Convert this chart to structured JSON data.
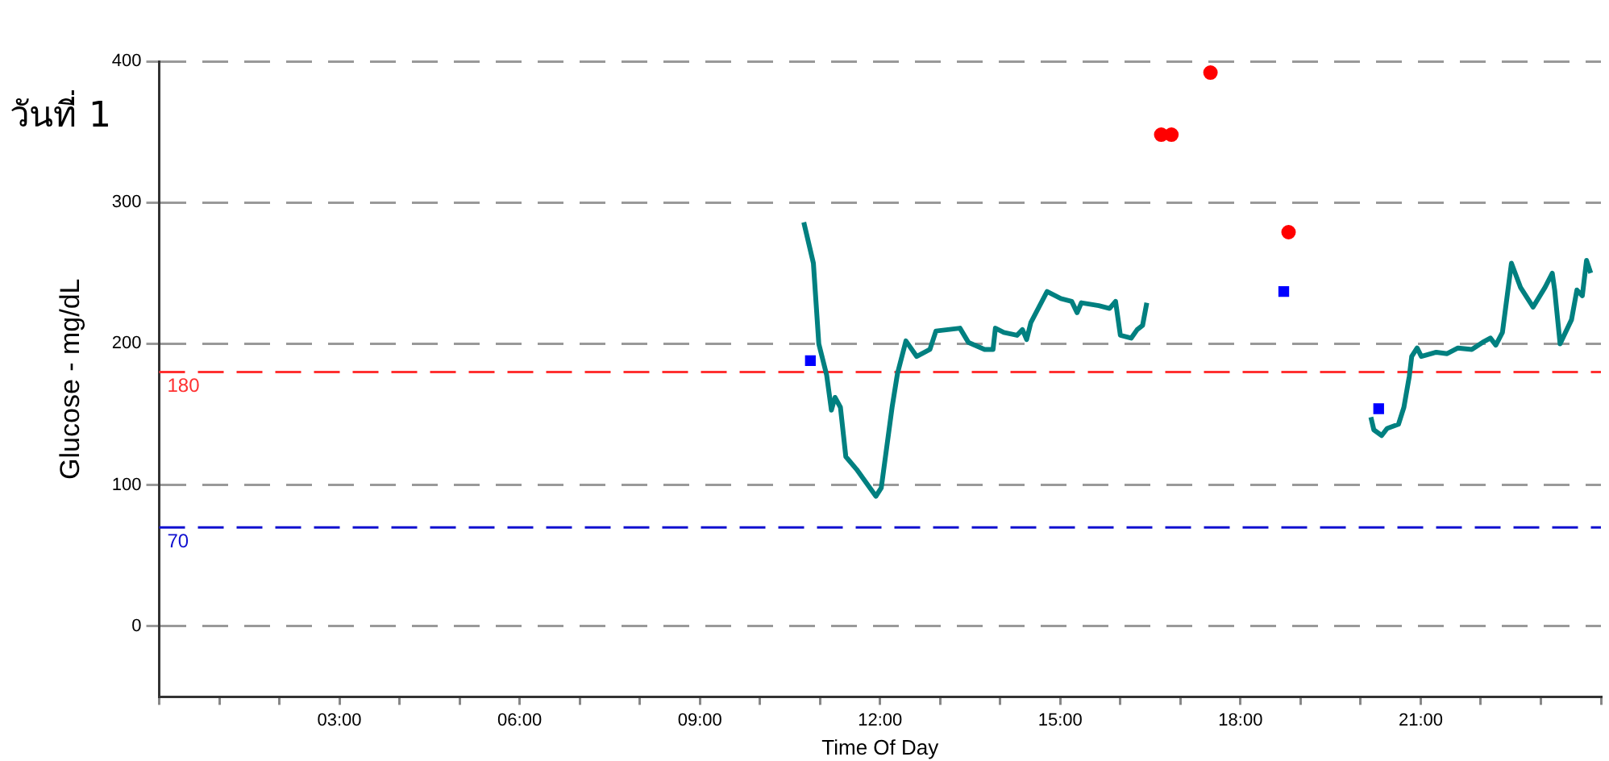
{
  "chart_data": {
    "type": "line",
    "xlabel": "Time Of Day",
    "ylabel": "Glucose - mg/dL",
    "annotations": [
      "วันที่ 1"
    ],
    "xlim": [
      0,
      24
    ],
    "ylim": [
      -50,
      400
    ],
    "yticks": [
      0,
      100,
      200,
      300,
      400
    ],
    "xticks": [
      {
        "value": 0,
        "label": null
      },
      {
        "value": 1,
        "label": null
      },
      {
        "value": 2,
        "label": null
      },
      {
        "value": 3,
        "label": "03:00"
      },
      {
        "value": 4,
        "label": null
      },
      {
        "value": 5,
        "label": null
      },
      {
        "value": 6,
        "label": "06:00"
      },
      {
        "value": 7,
        "label": null
      },
      {
        "value": 8,
        "label": null
      },
      {
        "value": 9,
        "label": "09:00"
      },
      {
        "value": 10,
        "label": null
      },
      {
        "value": 11,
        "label": null
      },
      {
        "value": 12,
        "label": "12:00"
      },
      {
        "value": 13,
        "label": null
      },
      {
        "value": 14,
        "label": null
      },
      {
        "value": 15,
        "label": "15:00"
      },
      {
        "value": 16,
        "label": null
      },
      {
        "value": 17,
        "label": null
      },
      {
        "value": 18,
        "label": "18:00"
      },
      {
        "value": 19,
        "label": null
      },
      {
        "value": 20,
        "label": null
      },
      {
        "value": 21,
        "label": "21:00"
      },
      {
        "value": 22,
        "label": null
      },
      {
        "value": 23,
        "label": null
      },
      {
        "value": 24,
        "label": null
      }
    ],
    "grid": "y",
    "legend": false,
    "ref_lines": [
      {
        "axis": "y",
        "value": 180,
        "label": "180",
        "color": "#ff3030",
        "line_style": "dashed"
      },
      {
        "axis": "y",
        "value": 70,
        "label": "70",
        "color": "#1010d0",
        "line_style": "dashed"
      }
    ],
    "series": [
      {
        "color": "#008080",
        "marker": "none",
        "x": [
          10.73,
          10.89,
          10.98,
          11.11,
          11.19,
          11.25,
          11.34,
          11.43,
          11.61,
          11.93,
          12.02,
          12.2,
          12.29,
          12.43,
          12.61,
          12.83,
          12.93,
          13.33,
          13.47,
          13.74,
          13.88,
          13.92,
          14.06,
          14.28,
          14.37,
          14.44,
          14.51,
          14.78,
          15.01,
          15.19,
          15.28,
          15.35,
          15.64,
          15.82,
          15.92,
          16.0,
          16.18,
          16.28,
          16.37,
          16.44,
          18.0,
          20.17,
          20.22,
          20.35,
          20.44,
          20.63,
          20.72,
          20.81,
          20.85,
          20.94,
          21.01,
          21.26,
          21.44,
          21.62,
          21.85,
          22.03,
          22.16,
          22.25,
          22.36,
          22.51,
          22.66,
          22.87,
          23.07,
          23.19,
          23.23,
          23.32,
          23.51,
          23.6,
          23.69,
          23.76,
          23.83
        ],
        "values": [
          286,
          257,
          200,
          178,
          153,
          162,
          155,
          120,
          111,
          92,
          98,
          155,
          179,
          202,
          191,
          196,
          209,
          211,
          201,
          196,
          196,
          211,
          208,
          206,
          210,
          203,
          215,
          237,
          232,
          230,
          222,
          229,
          227,
          225,
          230,
          206,
          204,
          210,
          213,
          229,
          null,
          148,
          139,
          135,
          140,
          143,
          155,
          177,
          191,
          197,
          191,
          194,
          193,
          197,
          196,
          201,
          204,
          199,
          208,
          257,
          240,
          226,
          240,
          250,
          238,
          200,
          217,
          238,
          234,
          259,
          250
        ]
      },
      {
        "type": "scatter",
        "color": "#ff0000",
        "marker": "circle",
        "x": [
          16.68,
          16.85,
          17.5,
          18.8
        ],
        "values": [
          348,
          348,
          392,
          279
        ]
      },
      {
        "type": "scatter",
        "color": "#0000ff",
        "marker": "square",
        "x": [
          10.84,
          18.72,
          20.3
        ],
        "values": [
          188,
          237,
          154
        ]
      }
    ]
  }
}
